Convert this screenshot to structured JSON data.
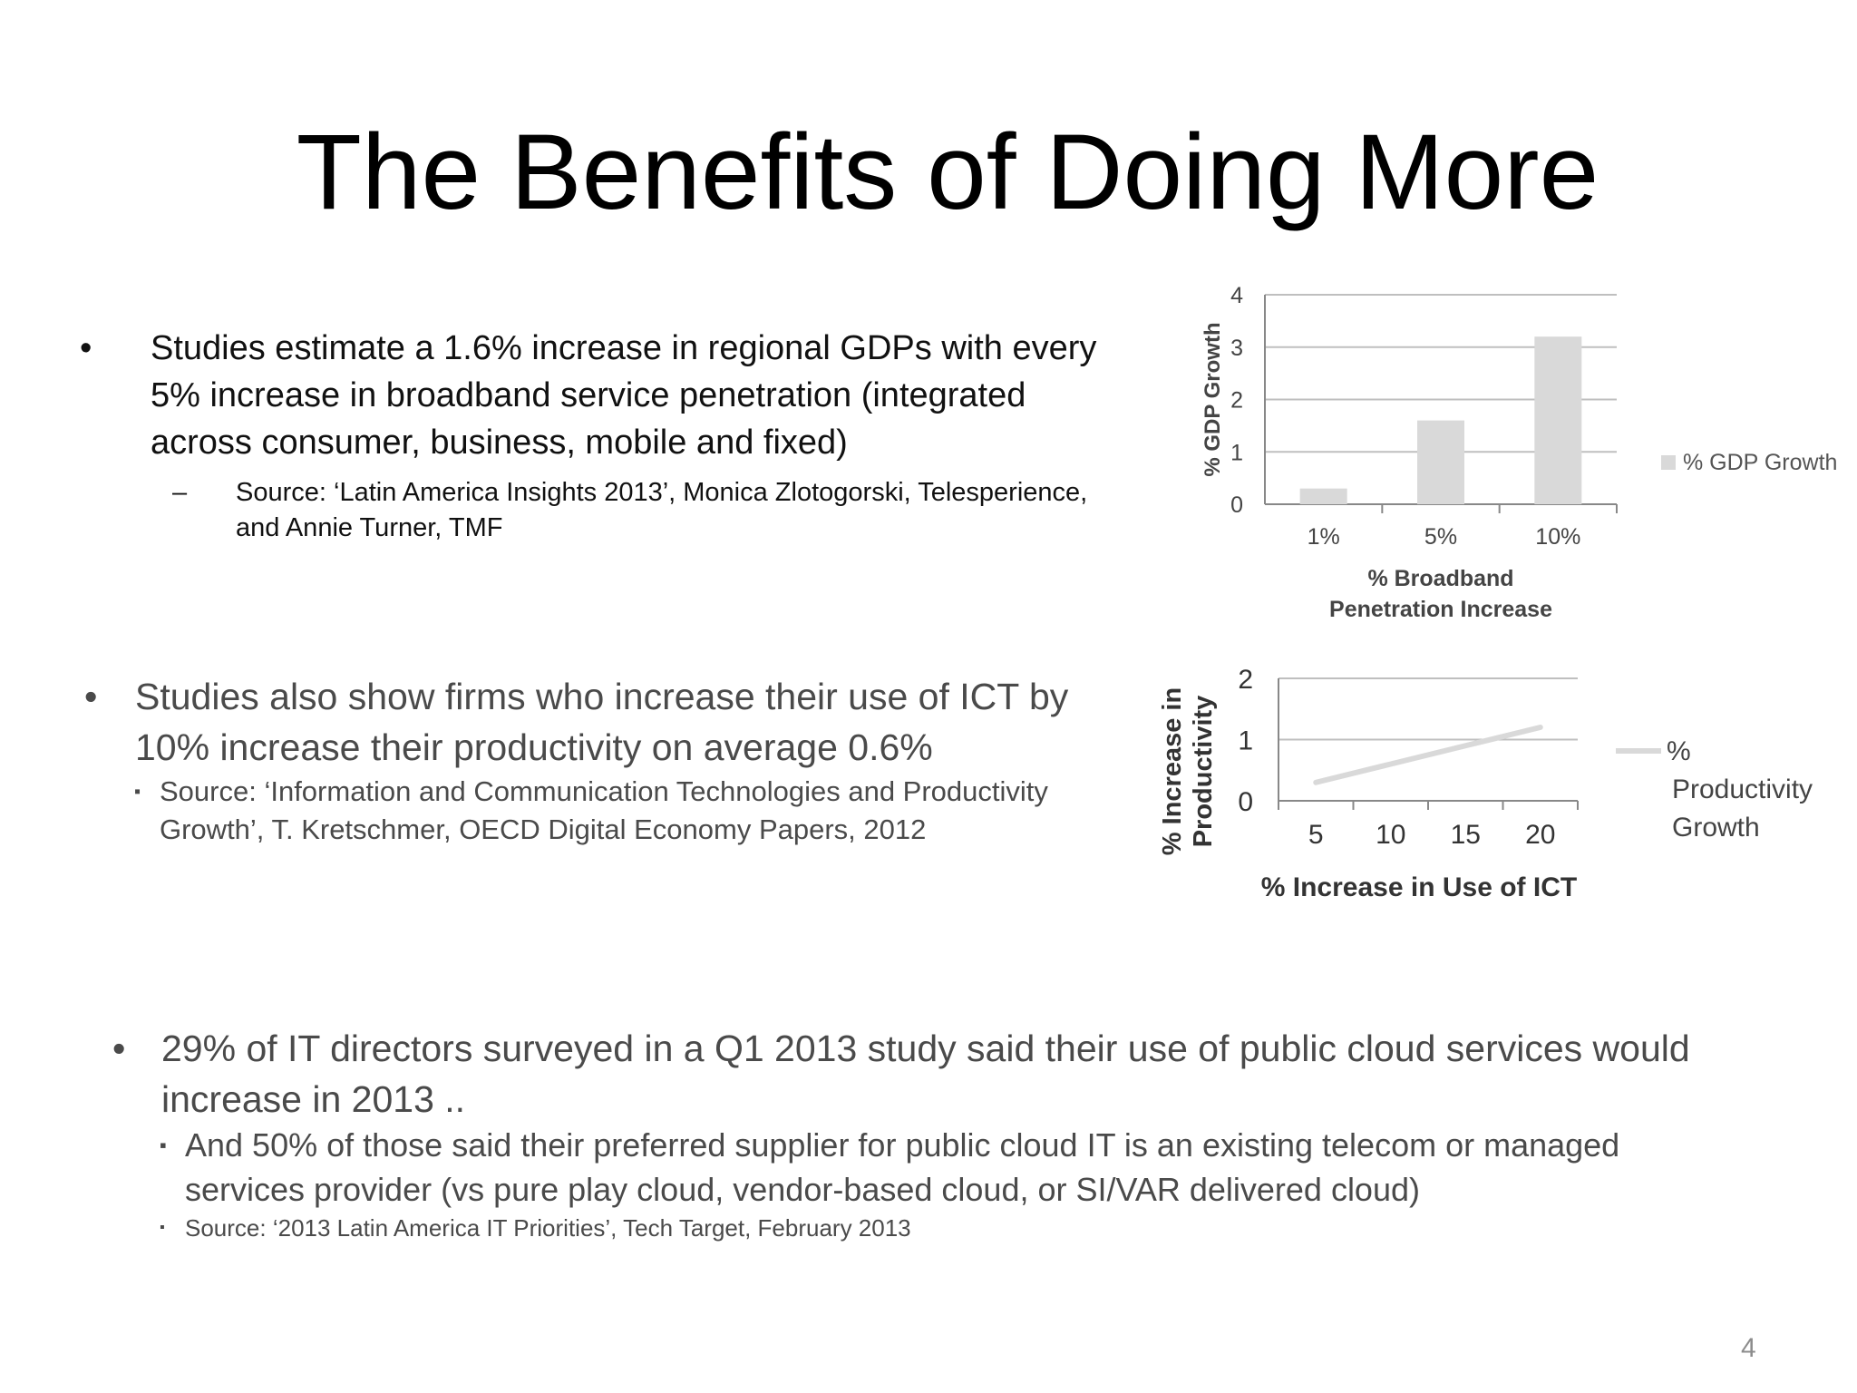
{
  "title": "The Benefits of Doing More",
  "bullets": [
    {
      "marker": "•",
      "text": "Studies estimate a 1.6% increase in regional GDPs with every 5% increase in broadband service penetration (integrated across consumer, business, mobile and fixed)",
      "sub": {
        "marker": "–",
        "text": "Source: ‘Latin America Insights 2013’, Monica Zlotogorski, Telesperience, and Annie Turner, TMF"
      }
    },
    {
      "marker": "•",
      "text": "Studies also show firms who increase their use of ICT by 10% increase their productivity on average 0.6%",
      "sub": {
        "marker": "▪",
        "text": "Source: ‘Information and Communication Technologies and Productivity Growth’, T. Kretschmer, OECD Digital Economy Papers, 2012"
      }
    },
    {
      "marker": "•",
      "text": "29% of IT directors surveyed in a Q1 2013 study said their use of public cloud services would increase in 2013 ..",
      "subs": [
        {
          "marker": "▪",
          "text": "And 50% of those said their preferred supplier for public cloud IT is an existing telecom or managed services provider (vs pure play cloud, vendor-based cloud, or SI/VAR delivered cloud)"
        },
        {
          "marker": "▪",
          "text": "Source: ‘2013 Latin America IT Priorities’, Tech Target, February 2013"
        }
      ]
    }
  ],
  "page_number": "4",
  "colors": {
    "bar": "#d9d9d9",
    "line": "#d9d9d9",
    "grid": "#bfbfbf"
  },
  "chart_data": [
    {
      "type": "bar",
      "categories": [
        "1%",
        "5%",
        "10%"
      ],
      "series": [
        {
          "name": "% GDP Growth",
          "values": [
            0.3,
            1.6,
            3.2
          ]
        }
      ],
      "xlabel": "% Broadband Penetration Increase",
      "xlabel_lines": [
        "% Broadband",
        "Penetration Increase"
      ],
      "ylabel": "% GDP Growth",
      "ylim": [
        0,
        4
      ],
      "yticks": [
        "0",
        "1",
        "2",
        "3",
        "4"
      ],
      "grid": true,
      "legend": "right"
    },
    {
      "type": "line",
      "x": [
        5,
        10,
        15,
        20
      ],
      "xticks": [
        "5",
        "10",
        "15",
        "20"
      ],
      "series": [
        {
          "name": "% Productivity Growth",
          "values": [
            0.3,
            0.6,
            0.9,
            1.2
          ]
        }
      ],
      "legend_lines": [
        "%",
        "Productivity",
        "Growth"
      ],
      "xlabel": "% Increase in Use of ICT",
      "ylabel": "% Increase in Productivity",
      "ylabel_lines": [
        "% Increase in",
        "Productivity"
      ],
      "ylim": [
        0,
        2
      ],
      "yticks": [
        "0",
        "1",
        "2"
      ],
      "grid": true,
      "legend": "right"
    }
  ]
}
